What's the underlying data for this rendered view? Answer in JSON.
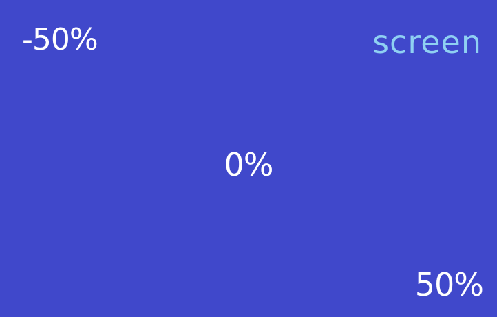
{
  "labels": {
    "top_left": "-50%",
    "top_right": "screen",
    "center": "0%",
    "bottom_right": "50%"
  },
  "colors": {
    "background": "#4048cb",
    "text": "#ffffff",
    "accent_text": "#8fd0f2"
  }
}
